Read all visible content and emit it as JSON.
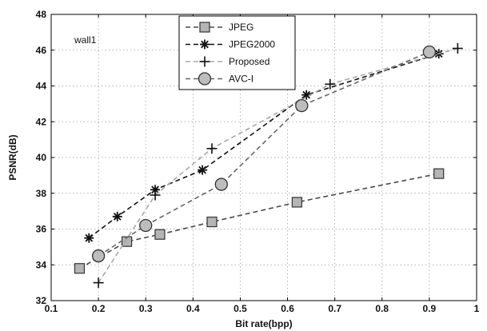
{
  "chart_data": {
    "type": "line",
    "xlabel": "Bit rate(bpp)",
    "ylabel": "PSNR(dB)",
    "xlim": [
      0.1,
      1.0
    ],
    "ylim": [
      32,
      48
    ],
    "xticks": [
      "0.1",
      "0.2",
      "0.3",
      "0.4",
      "0.5",
      "0.6",
      "0.7",
      "0.8",
      "0.9",
      "1"
    ],
    "yticks": [
      "32",
      "34",
      "36",
      "38",
      "40",
      "42",
      "44",
      "46",
      "48"
    ],
    "grid": true,
    "legend_position": "top-center",
    "annotation": "wall1",
    "series": [
      {
        "name": "JPEG",
        "marker": "square",
        "color": "#4a4a4a",
        "x": [
          0.16,
          0.26,
          0.33,
          0.44,
          0.62,
          0.92
        ],
        "y": [
          33.8,
          35.3,
          35.7,
          36.4,
          37.5,
          39.1
        ]
      },
      {
        "name": "JPEG2000",
        "marker": "asterisk",
        "color": "#111111",
        "x": [
          0.18,
          0.24,
          0.32,
          0.42,
          0.64,
          0.92
        ],
        "y": [
          35.5,
          36.7,
          38.2,
          39.3,
          43.5,
          45.8
        ]
      },
      {
        "name": "Proposed",
        "marker": "plus",
        "color": "#a8a8a8",
        "x": [
          0.2,
          0.32,
          0.44,
          0.69,
          0.96
        ],
        "y": [
          33.0,
          37.9,
          40.5,
          44.1,
          46.1
        ]
      },
      {
        "name": "AVC-I",
        "marker": "circle",
        "color": "#666666",
        "x": [
          0.2,
          0.3,
          0.46,
          0.63,
          0.9
        ],
        "y": [
          34.5,
          36.2,
          38.5,
          42.9,
          45.9
        ]
      }
    ]
  }
}
